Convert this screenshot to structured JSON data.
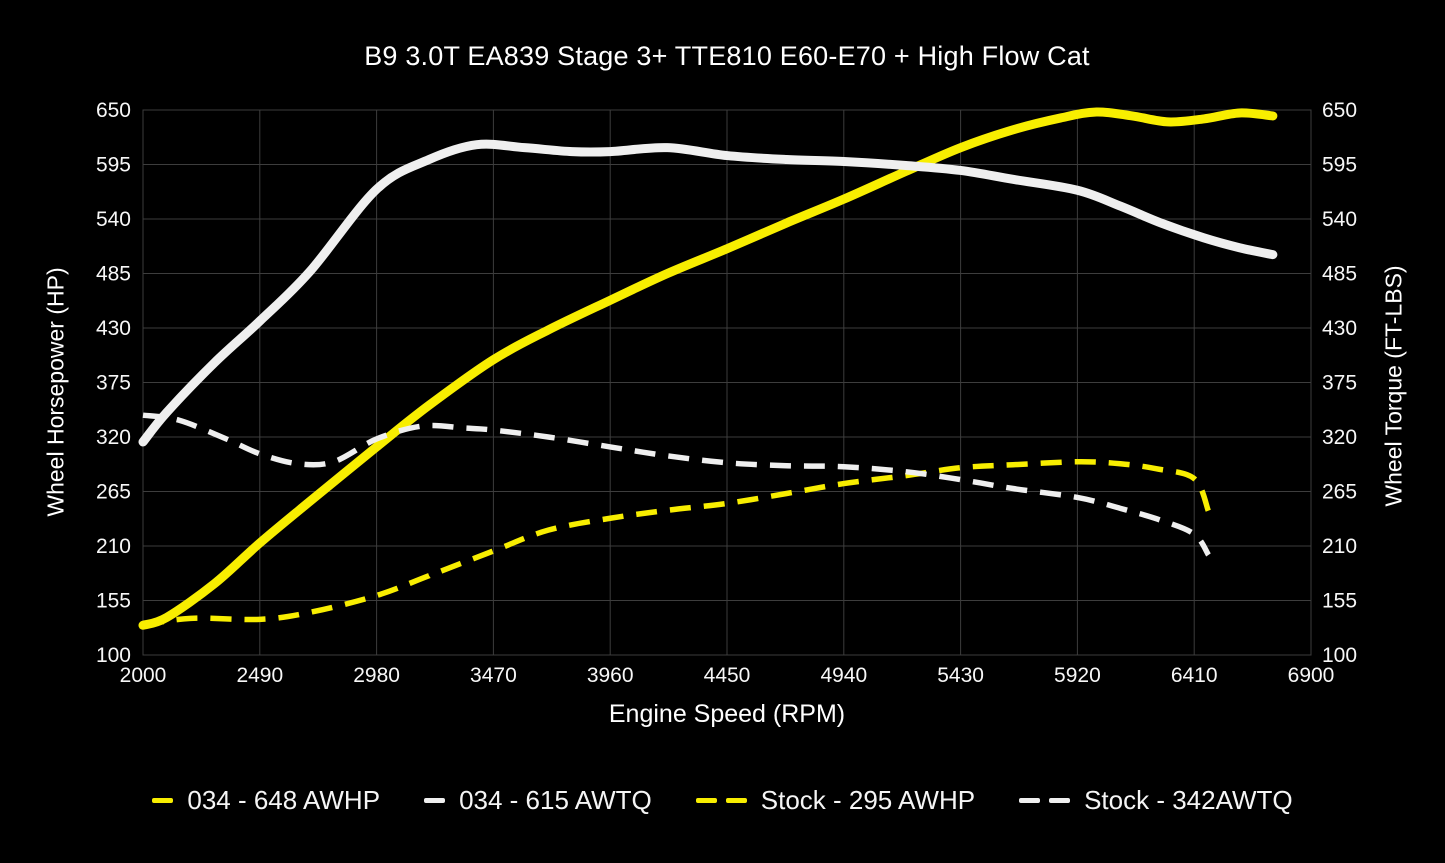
{
  "chart_data": {
    "type": "line",
    "title": "B9 3.0T EA839 Stage 3+ TTE810 E60-E70 + High Flow Cat",
    "xlabel": "Engine Speed (RPM)",
    "ylabel_left": "Wheel Horsepower (HP)",
    "ylabel_right": "Wheel Torque (FT-LBS)",
    "xlim": [
      2000,
      6900
    ],
    "ylim": [
      100,
      650
    ],
    "x_ticks": [
      2000,
      2490,
      2980,
      3470,
      3960,
      4450,
      4940,
      5430,
      5920,
      6410,
      6900
    ],
    "y_ticks": [
      100,
      155,
      210,
      265,
      320,
      375,
      430,
      485,
      540,
      595,
      650
    ],
    "grid": true,
    "legend_position": "bottom",
    "colors": {
      "yellow": "#f8ee00",
      "white": "#efefef",
      "grid": "#3d3d3d",
      "background": "#000000",
      "text": "#ffffff"
    },
    "series": [
      {
        "name": "034 - 648 AWHP",
        "color": "yellow",
        "style": "solid",
        "axis": "horsepower",
        "x": [
          2000,
          2100,
          2300,
          2490,
          2700,
          2980,
          3200,
          3470,
          3700,
          3960,
          4200,
          4450,
          4700,
          4940,
          5200,
          5430,
          5650,
          5850,
          6000,
          6150,
          6300,
          6450,
          6600,
          6740
        ],
        "values": [
          130,
          138,
          172,
          213,
          255,
          310,
          352,
          398,
          428,
          458,
          485,
          510,
          536,
          560,
          588,
          612,
          630,
          642,
          648,
          644,
          638,
          641,
          647,
          644
        ]
      },
      {
        "name": "034 - 615 AWTQ",
        "color": "white",
        "style": "solid",
        "axis": "torque",
        "x": [
          2000,
          2100,
          2300,
          2490,
          2700,
          2980,
          3200,
          3400,
          3600,
          3800,
          3960,
          4200,
          4450,
          4700,
          4940,
          5200,
          5430,
          5650,
          5920,
          6100,
          6270,
          6450,
          6600,
          6740
        ],
        "values": [
          315,
          345,
          395,
          437,
          487,
          570,
          600,
          615,
          612,
          608,
          608,
          612,
          604,
          600,
          598,
          594,
          589,
          580,
          569,
          553,
          536,
          521,
          511,
          504
        ]
      },
      {
        "name": "Stock - 295 AWHP",
        "color": "yellow",
        "style": "dashed",
        "axis": "horsepower",
        "x": [
          2000,
          2200,
          2490,
          2700,
          2980,
          3200,
          3470,
          3700,
          3960,
          4200,
          4450,
          4700,
          4940,
          5200,
          5430,
          5650,
          5920,
          6100,
          6250,
          6410,
          6470
        ],
        "values": [
          130,
          137,
          136,
          143,
          160,
          180,
          205,
          226,
          238,
          246,
          253,
          263,
          273,
          281,
          289,
          292,
          295,
          293,
          288,
          278,
          245
        ]
      },
      {
        "name": "Stock - 342AWTQ",
        "color": "white",
        "style": "dashed",
        "axis": "torque",
        "x": [
          2000,
          2150,
          2350,
          2490,
          2650,
          2800,
          2980,
          3170,
          3350,
          3470,
          3700,
          3960,
          4200,
          4450,
          4700,
          4940,
          5200,
          5430,
          5650,
          5920,
          6100,
          6270,
          6410,
          6470
        ],
        "values": [
          342,
          337,
          318,
          303,
          293,
          295,
          318,
          331,
          329,
          327,
          320,
          310,
          301,
          294,
          291,
          290,
          285,
          277,
          268,
          259,
          248,
          236,
          222,
          201
        ]
      }
    ]
  }
}
